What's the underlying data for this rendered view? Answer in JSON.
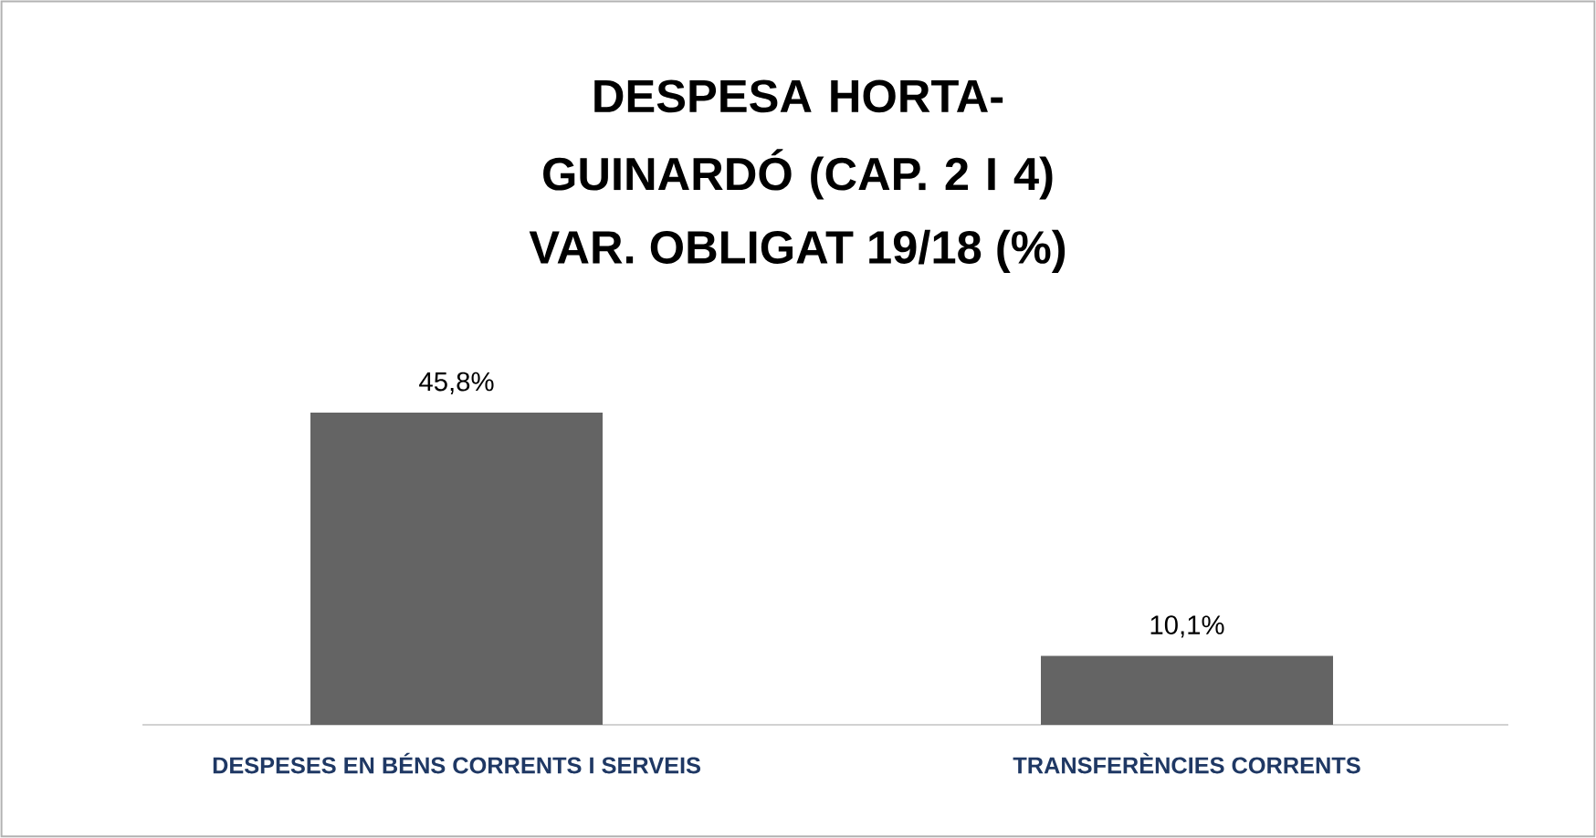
{
  "chart_data": {
    "type": "bar",
    "title": "DESPESA HORTA-GUINARDÓ (CAP. 2 I 4)",
    "subtitle": "VAR. OBLIGAT 19/18 (%)",
    "categories": [
      "DESPESES EN BÉNS CORRENTS I SERVEIS",
      "TRANSFERÈNCIES CORRENTS"
    ],
    "values": [
      45.8,
      10.1
    ],
    "value_labels": [
      "45,8%",
      "10,1%"
    ],
    "color": "#646464"
  }
}
